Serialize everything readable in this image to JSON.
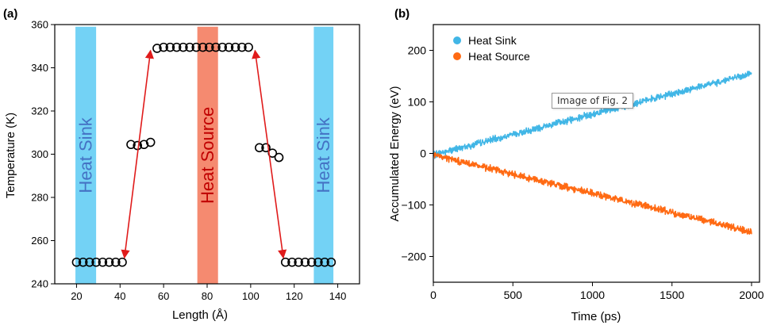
{
  "tooltip_text": "Image of Fig. 2",
  "colors": {
    "sink": "#73d2f5",
    "sink_text": "#4472c4",
    "source": "#f58a70",
    "source_text": "#c00000",
    "arrow": "#e01b1b",
    "series_sink": "#41b6e6",
    "series_source": "#ff6a13"
  },
  "chart_data": [
    {
      "panel_label": "(a)",
      "type": "scatter",
      "xlabel": "Length (Å)",
      "ylabel": "Temperature (K)",
      "xlim": [
        10,
        150
      ],
      "ylim": [
        240,
        360
      ],
      "xticks": [
        20,
        40,
        60,
        80,
        100,
        120,
        140
      ],
      "yticks": [
        240,
        260,
        280,
        300,
        320,
        340,
        360
      ],
      "regions": [
        {
          "label": "Heat Sink",
          "x_range": [
            19.5,
            29
          ]
        },
        {
          "label": "Heat Source",
          "x_range": [
            75.5,
            85
          ]
        },
        {
          "label": "Heat Sink",
          "x_range": [
            129,
            138
          ]
        }
      ],
      "points": [
        {
          "x": 20,
          "y": 250
        },
        {
          "x": 23,
          "y": 250
        },
        {
          "x": 26,
          "y": 250
        },
        {
          "x": 29,
          "y": 250
        },
        {
          "x": 32,
          "y": 250
        },
        {
          "x": 35,
          "y": 250
        },
        {
          "x": 38,
          "y": 250
        },
        {
          "x": 41,
          "y": 250
        },
        {
          "x": 45,
          "y": 304.5
        },
        {
          "x": 48,
          "y": 304
        },
        {
          "x": 51,
          "y": 304.5
        },
        {
          "x": 54,
          "y": 305.5
        },
        {
          "x": 57,
          "y": 349
        },
        {
          "x": 60,
          "y": 349.5
        },
        {
          "x": 63,
          "y": 349.5
        },
        {
          "x": 66,
          "y": 349.5
        },
        {
          "x": 69,
          "y": 349.5
        },
        {
          "x": 72,
          "y": 349.5
        },
        {
          "x": 75,
          "y": 349.5
        },
        {
          "x": 78,
          "y": 349.5
        },
        {
          "x": 81,
          "y": 349.5
        },
        {
          "x": 84,
          "y": 349.5
        },
        {
          "x": 87,
          "y": 349.5
        },
        {
          "x": 90,
          "y": 349.5
        },
        {
          "x": 93,
          "y": 349.5
        },
        {
          "x": 96,
          "y": 349.5
        },
        {
          "x": 99,
          "y": 349.5
        },
        {
          "x": 104,
          "y": 303
        },
        {
          "x": 107,
          "y": 303
        },
        {
          "x": 110,
          "y": 300.5
        },
        {
          "x": 113,
          "y": 298.5
        },
        {
          "x": 116,
          "y": 250
        },
        {
          "x": 119,
          "y": 250
        },
        {
          "x": 122,
          "y": 250
        },
        {
          "x": 125,
          "y": 250
        },
        {
          "x": 128,
          "y": 250
        },
        {
          "x": 131,
          "y": 250
        },
        {
          "x": 134,
          "y": 250
        },
        {
          "x": 137,
          "y": 250
        }
      ],
      "arrows": [
        {
          "from": [
            42,
            252
          ],
          "to": [
            54,
            348
          ]
        },
        {
          "from": [
            102,
            348
          ],
          "to": [
            115,
            252
          ]
        }
      ]
    },
    {
      "panel_label": "(b)",
      "type": "line",
      "xlabel": "Time (ps)",
      "ylabel": "Accumulated Energy (eV)",
      "xlim": [
        0,
        2050
      ],
      "ylim": [
        -250,
        250
      ],
      "xticks": [
        0,
        500,
        1000,
        1500,
        2000
      ],
      "yticks": [
        -200,
        -100,
        0,
        100,
        200
      ],
      "legend_position": "top-left",
      "series": [
        {
          "name": "Heat Sink",
          "x": [
            0,
            2000
          ],
          "y": [
            -3,
            155
          ]
        },
        {
          "name": "Heat Source",
          "x": [
            0,
            2000
          ],
          "y": [
            -3,
            -152
          ]
        }
      ]
    }
  ]
}
